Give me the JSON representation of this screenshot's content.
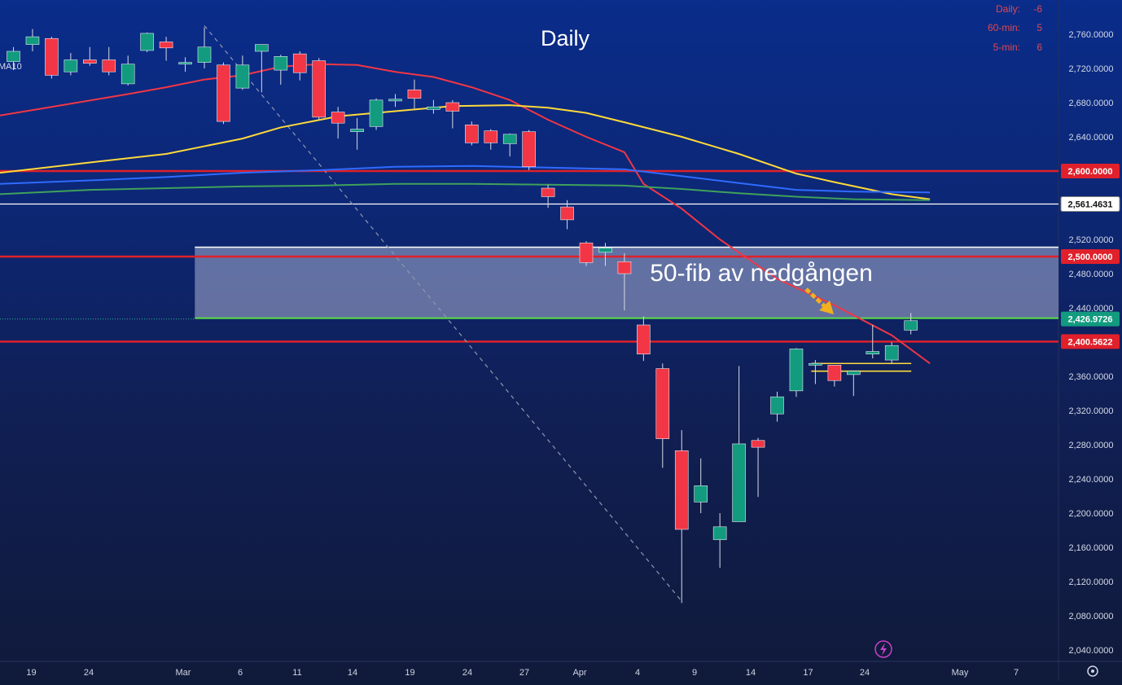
{
  "title": "Daily",
  "annotation": "50-fib av nedgången",
  "signals": [
    {
      "label": "Daily:",
      "value": "-6"
    },
    {
      "label": "60-min:",
      "value": "5"
    },
    {
      "label": "5-min:",
      "value": "6"
    }
  ],
  "ma_label_fragment": "MA10",
  "colors": {
    "up": "#129b7f",
    "down": "#f23645",
    "ma_red": "#f23645",
    "ma_yellow": "#ffd93b",
    "ma_blue": "#2f6bff",
    "ma_green": "#3fa15b",
    "level_red": "#e0202a",
    "fib_green": "#59e04a",
    "zone_fill": "#aab0d2"
  },
  "chart_data": {
    "type": "candlestick",
    "title": "Daily",
    "ylim": [
      2030,
      2795
    ],
    "y_ticks": [
      "2,760.0000",
      "2,720.0000",
      "2,680.0000",
      "2,640.0000",
      "2,600.0000",
      "2,561.4631",
      "2,520.0000",
      "2,500.0000",
      "2,480.0000",
      "2,440.0000",
      "2,426.9726",
      "2,400.5622",
      "2,360.0000",
      "2,320.0000",
      "2,280.0000",
      "2,240.0000",
      "2,200.0000",
      "2,160.0000",
      "2,120.0000",
      "2,080.0000",
      "2,040.0000"
    ],
    "x_ticks": [
      "19",
      "24",
      "Mar",
      "6",
      "11",
      "14",
      "19",
      "24",
      "27",
      "Apr",
      "4",
      "9",
      "14",
      "17",
      "24",
      "May",
      "7"
    ],
    "price_labels": [
      {
        "text": "2,600.0000",
        "value": 2600,
        "style": "red"
      },
      {
        "text": "2,561.4631",
        "value": 2561.4631,
        "style": "white"
      },
      {
        "text": "2,500.0000",
        "value": 2500,
        "style": "red"
      },
      {
        "text": "2,426.9726",
        "value": 2426.9726,
        "style": "green"
      },
      {
        "text": "2,400.5622",
        "value": 2400.5622,
        "style": "red"
      }
    ],
    "horizontal_levels": [
      {
        "value": 2600,
        "color": "red"
      },
      {
        "value": 2561.4631,
        "color": "white"
      },
      {
        "value": 2500,
        "color": "red"
      },
      {
        "value": 2400.5622,
        "color": "red"
      }
    ],
    "fib_zone": {
      "top": 2511,
      "bottom": 2428
    },
    "support_lines": [
      2375,
      2366
    ],
    "candles": [
      {
        "o": 2728,
        "h": 2745,
        "l": 2718,
        "c": 2740
      },
      {
        "o": 2748,
        "h": 2766,
        "l": 2740,
        "c": 2757
      },
      {
        "o": 2755,
        "h": 2757,
        "l": 2708,
        "c": 2712
      },
      {
        "o": 2716,
        "h": 2738,
        "l": 2712,
        "c": 2730
      },
      {
        "o": 2730,
        "h": 2745,
        "l": 2723,
        "c": 2726
      },
      {
        "o": 2730,
        "h": 2745,
        "l": 2712,
        "c": 2716
      },
      {
        "o": 2702,
        "h": 2735,
        "l": 2700,
        "c": 2725
      },
      {
        "o": 2741,
        "h": 2762,
        "l": 2739,
        "c": 2761
      },
      {
        "o": 2751,
        "h": 2757,
        "l": 2729,
        "c": 2744
      },
      {
        "o": 2725,
        "h": 2733,
        "l": 2716,
        "c": 2727
      },
      {
        "o": 2727,
        "h": 2768,
        "l": 2720,
        "c": 2745
      },
      {
        "o": 2724,
        "h": 2727,
        "l": 2655,
        "c": 2658
      },
      {
        "o": 2697,
        "h": 2735,
        "l": 2695,
        "c": 2724
      },
      {
        "o": 2740,
        "h": 2748,
        "l": 2692,
        "c": 2748
      },
      {
        "o": 2718,
        "h": 2736,
        "l": 2701,
        "c": 2734
      },
      {
        "o": 2737,
        "h": 2740,
        "l": 2706,
        "c": 2715
      },
      {
        "o": 2729,
        "h": 2732,
        "l": 2660,
        "c": 2663
      },
      {
        "o": 2669,
        "h": 2675,
        "l": 2638,
        "c": 2656
      },
      {
        "o": 2646,
        "h": 2662,
        "l": 2625,
        "c": 2649
      },
      {
        "o": 2652,
        "h": 2685,
        "l": 2648,
        "c": 2683
      },
      {
        "o": 2682,
        "h": 2690,
        "l": 2675,
        "c": 2684
      },
      {
        "o": 2695,
        "h": 2707,
        "l": 2673,
        "c": 2685
      },
      {
        "o": 2672,
        "h": 2683,
        "l": 2667,
        "c": 2675
      },
      {
        "o": 2680,
        "h": 2683,
        "l": 2650,
        "c": 2670
      },
      {
        "o": 2654,
        "h": 2658,
        "l": 2630,
        "c": 2633
      },
      {
        "o": 2647,
        "h": 2649,
        "l": 2625,
        "c": 2633
      },
      {
        "o": 2632,
        "h": 2644,
        "l": 2617,
        "c": 2643
      },
      {
        "o": 2646,
        "h": 2648,
        "l": 2601,
        "c": 2605
      },
      {
        "o": 2580,
        "h": 2584,
        "l": 2557,
        "c": 2570
      },
      {
        "o": 2558,
        "h": 2566,
        "l": 2532,
        "c": 2543
      },
      {
        "o": 2516,
        "h": 2518,
        "l": 2489,
        "c": 2493
      },
      {
        "o": 2505,
        "h": 2516,
        "l": 2489,
        "c": 2510
      },
      {
        "o": 2494,
        "h": 2504,
        "l": 2437,
        "c": 2480
      },
      {
        "o": 2420,
        "h": 2430,
        "l": 2378,
        "c": 2386
      },
      {
        "o": 2369,
        "h": 2375,
        "l": 2253,
        "c": 2287
      },
      {
        "o": 2273,
        "h": 2297,
        "l": 2095,
        "c": 2181
      },
      {
        "o": 2213,
        "h": 2264,
        "l": 2200,
        "c": 2232
      },
      {
        "o": 2169,
        "h": 2200,
        "l": 2136,
        "c": 2184
      },
      {
        "o": 2190,
        "h": 2372,
        "l": 2190,
        "c": 2281
      },
      {
        "o": 2285,
        "h": 2288,
        "l": 2219,
        "c": 2277
      },
      {
        "o": 2316,
        "h": 2342,
        "l": 2307,
        "c": 2336
      },
      {
        "o": 2343,
        "h": 2393,
        "l": 2336,
        "c": 2392
      },
      {
        "o": 2373,
        "h": 2379,
        "l": 2351,
        "c": 2375
      },
      {
        "o": 2373,
        "h": 2373,
        "l": 2348,
        "c": 2355
      },
      {
        "o": 2362,
        "h": 2366,
        "l": 2337,
        "c": 2366
      },
      {
        "o": 2386,
        "h": 2420,
        "l": 2381,
        "c": 2389
      },
      {
        "o": 2379,
        "h": 2400,
        "l": 2375,
        "c": 2396
      },
      {
        "o": 2414,
        "h": 2434,
        "l": 2409,
        "c": 2425
      }
    ],
    "moving_averages": [
      {
        "name": "MA10",
        "color": "red",
        "points": [
          [
            0,
            2665
          ],
          [
            2,
            2675
          ],
          [
            6,
            2690
          ],
          [
            8,
            2698
          ],
          [
            10,
            2707
          ],
          [
            12,
            2712
          ],
          [
            14,
            2722
          ],
          [
            16,
            2725
          ],
          [
            18,
            2724
          ],
          [
            20,
            2716
          ],
          [
            22,
            2710
          ],
          [
            24,
            2698
          ],
          [
            26,
            2683
          ],
          [
            28,
            2660
          ],
          [
            30,
            2640
          ],
          [
            32,
            2622
          ],
          [
            33,
            2585
          ],
          [
            35,
            2556
          ],
          [
            37,
            2520
          ],
          [
            40,
            2474
          ],
          [
            43,
            2443
          ],
          [
            46,
            2408
          ],
          [
            48,
            2375
          ]
        ]
      },
      {
        "name": "MA yellow",
        "color": "yellow",
        "points": [
          [
            0,
            2598
          ],
          [
            4,
            2610
          ],
          [
            8,
            2620
          ],
          [
            10,
            2629
          ],
          [
            12,
            2638
          ],
          [
            14,
            2651
          ],
          [
            17,
            2664
          ],
          [
            20,
            2670
          ],
          [
            23,
            2676
          ],
          [
            26,
            2677
          ],
          [
            28,
            2674
          ],
          [
            30,
            2668
          ],
          [
            32,
            2657
          ],
          [
            35,
            2640
          ],
          [
            38,
            2620
          ],
          [
            41,
            2597
          ],
          [
            43,
            2587
          ],
          [
            46,
            2573
          ],
          [
            48,
            2567
          ]
        ]
      },
      {
        "name": "MA blue",
        "color": "blue",
        "points": [
          [
            0,
            2585
          ],
          [
            4,
            2589
          ],
          [
            8,
            2593
          ],
          [
            12,
            2598
          ],
          [
            16,
            2601
          ],
          [
            20,
            2605
          ],
          [
            24,
            2606
          ],
          [
            28,
            2604
          ],
          [
            32,
            2602
          ],
          [
            35,
            2594
          ],
          [
            38,
            2586
          ],
          [
            41,
            2578
          ],
          [
            44,
            2576
          ],
          [
            48,
            2575
          ]
        ]
      },
      {
        "name": "MA green",
        "color": "green",
        "points": [
          [
            0,
            2573
          ],
          [
            4,
            2578
          ],
          [
            8,
            2580
          ],
          [
            12,
            2582
          ],
          [
            16,
            2583
          ],
          [
            20,
            2585
          ],
          [
            24,
            2585
          ],
          [
            28,
            2584
          ],
          [
            32,
            2583
          ],
          [
            35,
            2579
          ],
          [
            38,
            2574
          ],
          [
            41,
            2570
          ],
          [
            44,
            2567
          ],
          [
            48,
            2566
          ]
        ]
      }
    ],
    "trendline": {
      "from": [
        10,
        2770
      ],
      "to": [
        35,
        2097
      ],
      "style": "dashed"
    }
  }
}
